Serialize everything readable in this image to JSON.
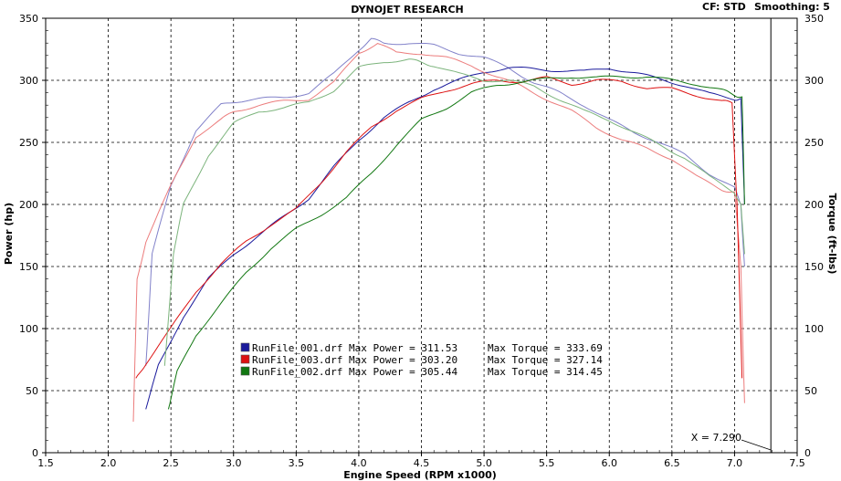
{
  "header": {
    "title": "DYNOJET RESEARCH",
    "cf_label": "CF: STD",
    "smoothing_label": "Smoothing: 5"
  },
  "chart_data": {
    "type": "line",
    "title": "DYNOJET RESEARCH",
    "xlabel": "Engine Speed (RPM x1000)",
    "ylabel": "Power (hp)",
    "y2label": "Torque (ft-lbs)",
    "xlim": [
      1.5,
      7.5
    ],
    "ylim": [
      0,
      350
    ],
    "y2lim": [
      0,
      350
    ],
    "x_ticks": [
      "1.5",
      "2.0",
      "2.5",
      "3.0",
      "3.5",
      "4.0",
      "4.5",
      "5.0",
      "5.5",
      "6.0",
      "6.5",
      "7.0",
      "7.5"
    ],
    "y_ticks": [
      "0",
      "50",
      "100",
      "150",
      "200",
      "250",
      "300",
      "350"
    ],
    "y2_ticks": [
      "0",
      "50",
      "100",
      "150",
      "200",
      "250",
      "300",
      "350"
    ],
    "grid": true,
    "cursor": {
      "x": 7.29,
      "label": "X = 7.290"
    },
    "series": [
      {
        "name": "RunFile_001.drf",
        "color": "#1a1a9c",
        "max_power_label": "Max Power = 311.53",
        "max_torque_label": "Max Torque = 333.69",
        "power": {
          "x": [
            2.3,
            2.4,
            2.6,
            2.8,
            3.0,
            3.2,
            3.4,
            3.6,
            3.8,
            4.0,
            4.2,
            4.4,
            4.6,
            4.8,
            5.0,
            5.2,
            5.4,
            5.6,
            5.8,
            6.0,
            6.2,
            6.4,
            6.6,
            6.8,
            7.0,
            7.05,
            7.08
          ],
          "y": [
            35,
            70,
            110,
            140,
            160,
            175,
            190,
            205,
            230,
            252,
            270,
            282,
            293,
            300,
            307,
            310,
            309,
            308,
            307,
            310,
            306,
            301,
            296,
            289,
            285,
            285,
            200
          ]
        },
        "torque": {
          "x": [
            2.3,
            2.35,
            2.5,
            2.7,
            2.9,
            3.0,
            3.2,
            3.4,
            3.6,
            3.8,
            4.0,
            4.1,
            4.2,
            4.4,
            4.6,
            4.8,
            5.0,
            5.2,
            5.4,
            5.6,
            5.8,
            6.0,
            6.2,
            6.4,
            6.6,
            6.8,
            7.0,
            7.05,
            7.08
          ],
          "y": [
            70,
            160,
            215,
            260,
            280,
            283,
            285,
            286,
            290,
            305,
            325,
            333,
            330,
            330,
            328,
            322,
            318,
            310,
            298,
            290,
            280,
            268,
            258,
            250,
            240,
            225,
            213,
            200,
            150
          ]
        }
      },
      {
        "name": "RunFile_003.drf",
        "color": "#dd1111",
        "max_power_label": "Max Power = 303.20",
        "max_torque_label": "Max Torque = 327.14",
        "power": {
          "x": [
            2.22,
            2.3,
            2.5,
            2.7,
            2.9,
            3.1,
            3.3,
            3.5,
            3.7,
            3.9,
            4.1,
            4.3,
            4.5,
            4.7,
            4.9,
            5.1,
            5.3,
            5.5,
            5.7,
            5.9,
            6.1,
            6.3,
            6.5,
            6.7,
            6.9,
            6.98,
            7.02,
            7.06
          ],
          "y": [
            60,
            72,
            100,
            130,
            152,
            170,
            184,
            196,
            218,
            242,
            262,
            276,
            285,
            292,
            297,
            300,
            299,
            302,
            297,
            300,
            299,
            294,
            293,
            288,
            283,
            282,
            200,
            60
          ]
        },
        "torque": {
          "x": [
            2.2,
            2.23,
            2.3,
            2.5,
            2.7,
            2.9,
            3.0,
            3.2,
            3.4,
            3.6,
            3.8,
            4.0,
            4.15,
            4.3,
            4.5,
            4.7,
            4.9,
            5.1,
            5.3,
            5.5,
            5.7,
            5.9,
            6.1,
            6.3,
            6.5,
            6.7,
            6.9,
            7.0,
            7.05,
            7.08
          ],
          "y": [
            25,
            140,
            170,
            215,
            255,
            268,
            275,
            280,
            283,
            285,
            298,
            322,
            330,
            322,
            322,
            318,
            312,
            303,
            295,
            285,
            275,
            262,
            252,
            245,
            237,
            222,
            212,
            210,
            150,
            40
          ]
        }
      },
      {
        "name": "RunFile_002.drf",
        "color": "#117711",
        "max_power_label": "Max Power = 305.44",
        "max_torque_label": "Max Torque = 314.45",
        "power": {
          "x": [
            2.48,
            2.55,
            2.7,
            2.9,
            3.1,
            3.3,
            3.5,
            3.7,
            3.9,
            4.1,
            4.3,
            4.5,
            4.7,
            4.9,
            5.1,
            5.3,
            5.5,
            5.7,
            5.9,
            6.1,
            6.3,
            6.5,
            6.7,
            6.9,
            7.0,
            7.06,
            7.08
          ],
          "y": [
            35,
            65,
            95,
            120,
            145,
            165,
            180,
            192,
            205,
            225,
            248,
            268,
            278,
            290,
            296,
            299,
            301,
            303,
            302,
            303,
            303,
            300,
            297,
            292,
            288,
            287,
            200
          ]
        },
        "torque": {
          "x": [
            2.45,
            2.52,
            2.6,
            2.8,
            3.0,
            3.2,
            3.4,
            3.6,
            3.8,
            4.0,
            4.2,
            4.4,
            4.5,
            4.6,
            4.8,
            5.0,
            5.2,
            5.4,
            5.6,
            5.8,
            6.0,
            6.2,
            6.4,
            6.6,
            6.8,
            7.0,
            7.05,
            7.08
          ],
          "y": [
            70,
            160,
            200,
            240,
            265,
            275,
            278,
            282,
            292,
            310,
            315,
            317,
            314,
            312,
            305,
            300,
            300,
            295,
            285,
            275,
            268,
            258,
            248,
            238,
            222,
            210,
            200,
            160
          ]
        }
      }
    ]
  }
}
